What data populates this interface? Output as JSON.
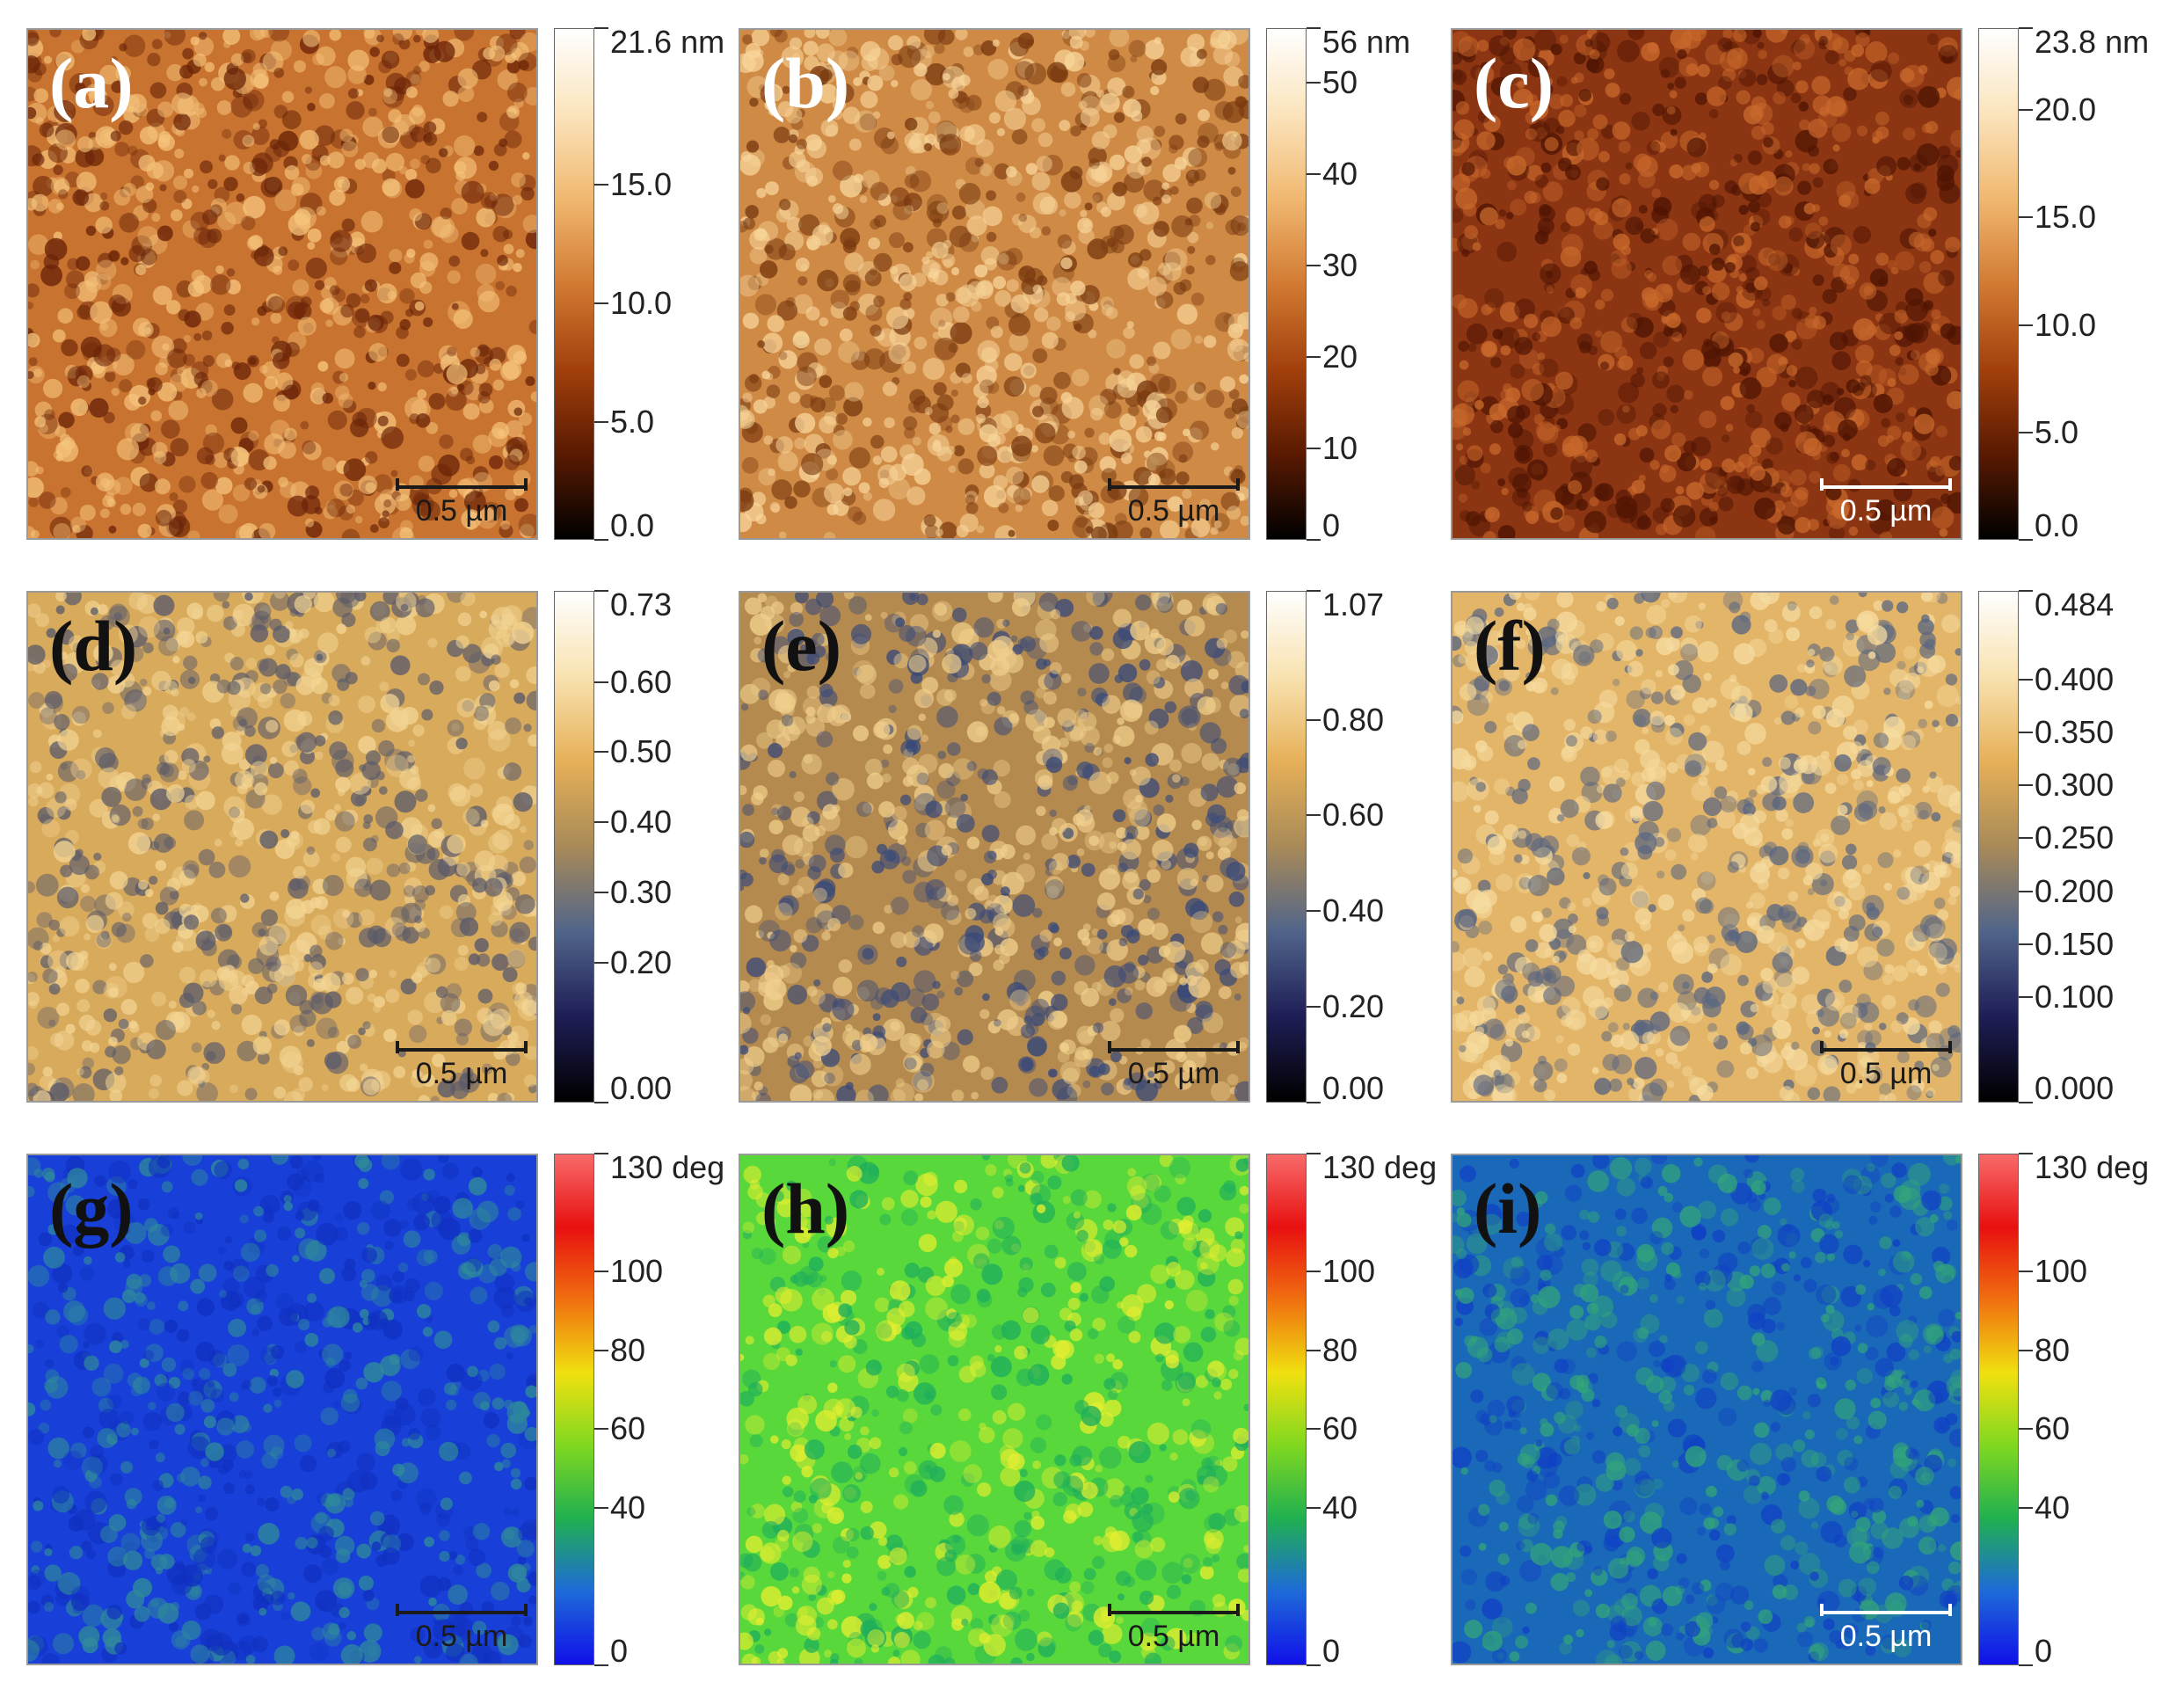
{
  "panels": [
    {
      "label": "(a)",
      "label_color": "#ffffff",
      "colormap": "height",
      "surface": {
        "base": "#c8732f",
        "light": "#f6c47c",
        "dark": "#6a2408"
      },
      "scalebar": {
        "text": "0.5 µm",
        "color": "#1a1a1a"
      },
      "colorbar": {
        "ticks": [
          {
            "label": "21.6 nm",
            "frac": 1.0
          },
          {
            "label": "15.0",
            "frac": 0.694
          },
          {
            "label": "10.0",
            "frac": 0.463
          },
          {
            "label": "5.0",
            "frac": 0.231
          },
          {
            "label": "0.0",
            "frac": 0.0
          }
        ]
      }
    },
    {
      "label": "(b)",
      "label_color": "#ffffff",
      "colormap": "height",
      "surface": {
        "base": "#cf8a45",
        "light": "#f8d59a",
        "dark": "#7a3a10"
      },
      "scalebar": {
        "text": "0.5 µm",
        "color": "#1a1a1a"
      },
      "colorbar": {
        "ticks": [
          {
            "label": "56 nm",
            "frac": 1.0
          },
          {
            "label": "50",
            "frac": 0.893
          },
          {
            "label": "40",
            "frac": 0.714
          },
          {
            "label": "30",
            "frac": 0.536
          },
          {
            "label": "20",
            "frac": 0.357
          },
          {
            "label": "10",
            "frac": 0.179
          },
          {
            "label": "0",
            "frac": 0.0
          }
        ]
      }
    },
    {
      "label": "(c)",
      "label_color": "#ffffff",
      "colormap": "height",
      "surface": {
        "base": "#8c3512",
        "light": "#c9692c",
        "dark": "#4e1403"
      },
      "scalebar": {
        "text": "0.5 µm",
        "color": "#ffffff"
      },
      "colorbar": {
        "ticks": [
          {
            "label": "23.8 nm",
            "frac": 1.0
          },
          {
            "label": "20.0",
            "frac": 0.84
          },
          {
            "label": "15.0",
            "frac": 0.63
          },
          {
            "label": "10.0",
            "frac": 0.42
          },
          {
            "label": "5.0",
            "frac": 0.21
          },
          {
            "label": "0.0",
            "frac": 0.0
          }
        ]
      }
    },
    {
      "label": "(d)",
      "label_color": "#111111",
      "colormap": "amplitude",
      "surface": {
        "base": "#d8aa5c",
        "light": "#f3d594",
        "dark": "#5a5a6a"
      },
      "scalebar": {
        "text": "0.5 µm",
        "color": "#1a1a1a"
      },
      "colorbar": {
        "ticks": [
          {
            "label": "0.73",
            "frac": 1.0
          },
          {
            "label": "0.60",
            "frac": 0.822
          },
          {
            "label": "0.50",
            "frac": 0.685
          },
          {
            "label": "0.40",
            "frac": 0.548
          },
          {
            "label": "0.30",
            "frac": 0.411
          },
          {
            "label": "0.20",
            "frac": 0.274
          },
          {
            "label": "0.00",
            "frac": 0.0
          }
        ]
      }
    },
    {
      "label": "(e)",
      "label_color": "#111111",
      "colormap": "amplitude",
      "surface": {
        "base": "#b58a4e",
        "light": "#f0cf8c",
        "dark": "#3a4a78"
      },
      "scalebar": {
        "text": "0.5 µm",
        "color": "#1a1a1a"
      },
      "colorbar": {
        "ticks": [
          {
            "label": "1.07",
            "frac": 1.0
          },
          {
            "label": "0.80",
            "frac": 0.748
          },
          {
            "label": "0.60",
            "frac": 0.561
          },
          {
            "label": "0.40",
            "frac": 0.374
          },
          {
            "label": "0.20",
            "frac": 0.187
          },
          {
            "label": "0.00",
            "frac": 0.0
          }
        ]
      }
    },
    {
      "label": "(f)",
      "label_color": "#111111",
      "colormap": "amplitude",
      "surface": {
        "base": "#e3b568",
        "light": "#f6dca0",
        "dark": "#5a6680"
      },
      "scalebar": {
        "text": "0.5 µm",
        "color": "#1a1a1a"
      },
      "colorbar": {
        "ticks": [
          {
            "label": "0.484",
            "frac": 1.0
          },
          {
            "label": "0.400",
            "frac": 0.826
          },
          {
            "label": "0.350",
            "frac": 0.723
          },
          {
            "label": "0.300",
            "frac": 0.62
          },
          {
            "label": "0.250",
            "frac": 0.517
          },
          {
            "label": "0.200",
            "frac": 0.413
          },
          {
            "label": "0.150",
            "frac": 0.31
          },
          {
            "label": "0.100",
            "frac": 0.207
          },
          {
            "label": "0.000",
            "frac": 0.0
          }
        ]
      }
    },
    {
      "label": "(g)",
      "label_color": "#111111",
      "colormap": "phase",
      "surface": {
        "base": "#1840d8",
        "light": "#2f8a9a",
        "dark": "#1030c0"
      },
      "scalebar": {
        "text": "0.5 µm",
        "color": "#1a1a1a"
      },
      "colorbar": {
        "ticks": [
          {
            "label": "130 deg",
            "frac": 1.0
          },
          {
            "label": "100",
            "frac": 0.769
          },
          {
            "label": "80",
            "frac": 0.615
          },
          {
            "label": "60",
            "frac": 0.462
          },
          {
            "label": "40",
            "frac": 0.308
          },
          {
            "label": "0",
            "frac": 0.0
          }
        ]
      }
    },
    {
      "label": "(h)",
      "label_color": "#111111",
      "colormap": "phase",
      "surface": {
        "base": "#58d83a",
        "light": "#e6ee30",
        "dark": "#1eae5c"
      },
      "scalebar": {
        "text": "0.5 µm",
        "color": "#1a1a1a"
      },
      "colorbar": {
        "ticks": [
          {
            "label": "130 deg",
            "frac": 1.0
          },
          {
            "label": "100",
            "frac": 0.769
          },
          {
            "label": "80",
            "frac": 0.615
          },
          {
            "label": "60",
            "frac": 0.462
          },
          {
            "label": "40",
            "frac": 0.308
          },
          {
            "label": "0",
            "frac": 0.0
          }
        ]
      }
    },
    {
      "label": "(i)",
      "label_color": "#111111",
      "colormap": "phase",
      "surface": {
        "base": "#1a68b8",
        "light": "#32a47a",
        "dark": "#1040c4"
      },
      "scalebar": {
        "text": "0.5 µm",
        "color": "#ffffff"
      },
      "colorbar": {
        "ticks": [
          {
            "label": "130 deg",
            "frac": 1.0
          },
          {
            "label": "100",
            "frac": 0.769
          },
          {
            "label": "80",
            "frac": 0.615
          },
          {
            "label": "60",
            "frac": 0.462
          },
          {
            "label": "40",
            "frac": 0.308
          },
          {
            "label": "0",
            "frac": 0.0
          }
        ]
      }
    }
  ],
  "colormaps": {
    "height": [
      "#000000",
      "#5a1a02",
      "#a2400c",
      "#d27a32",
      "#f0b870",
      "#fbe4bc",
      "#ffffff"
    ],
    "amplitude": [
      "#000000",
      "#1e1e56",
      "#50648a",
      "#a88a58",
      "#e6b058",
      "#f8e2b0",
      "#ffffff"
    ],
    "phase": [
      "#1010e8",
      "#1e6ad8",
      "#20b050",
      "#80d820",
      "#f0e010",
      "#f07010",
      "#e81010",
      "#f86a6a"
    ]
  }
}
